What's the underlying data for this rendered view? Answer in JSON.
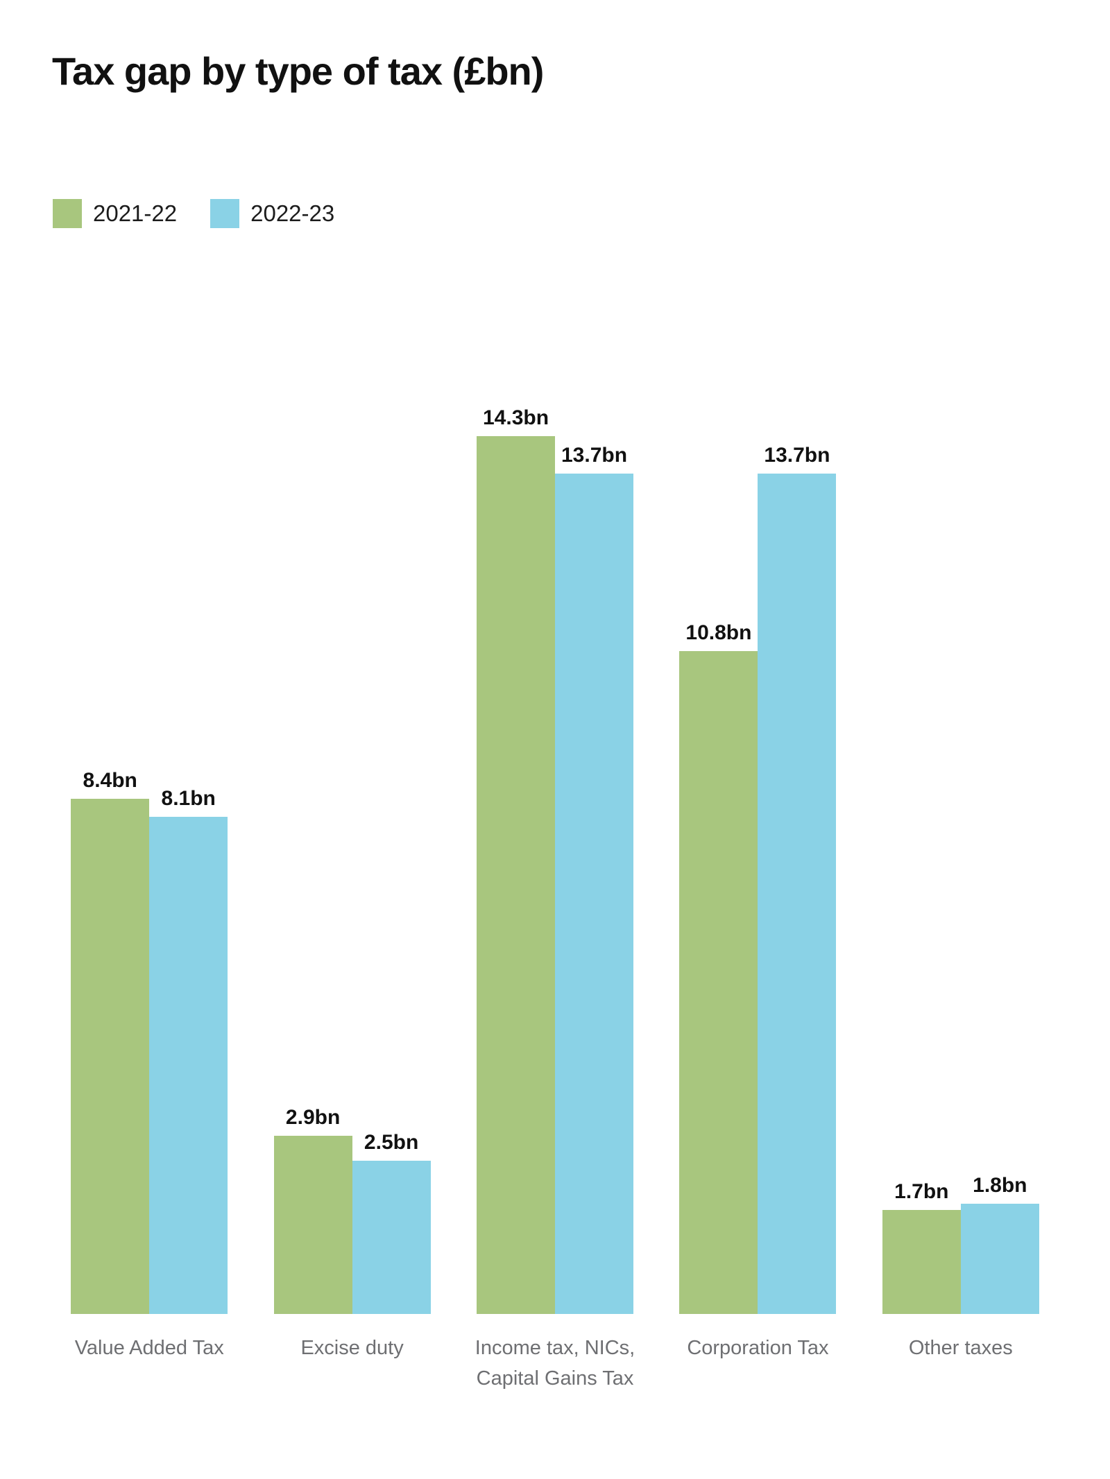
{
  "title": "Tax gap by type of tax (£bn)",
  "legend": [
    {
      "label": "2021-22",
      "color": "#a8c67e"
    },
    {
      "label": "2022-23",
      "color": "#8ad2e6"
    }
  ],
  "chart_data": {
    "type": "bar",
    "title": "Tax gap by type of tax (£bn)",
    "categories": [
      "Value Added Tax",
      "Excise duty",
      "Income tax, NICs,\nCapital Gains Tax",
      "Corporation Tax",
      "Other taxes"
    ],
    "series": [
      {
        "name": "2021-22",
        "color": "#a8c67e",
        "values": [
          8.4,
          2.9,
          14.3,
          10.8,
          1.7
        ],
        "data_labels": [
          "8.4bn",
          "2.9bn",
          "14.3bn",
          "10.8bn",
          "1.7bn"
        ]
      },
      {
        "name": "2022-23",
        "color": "#8ad2e6",
        "values": [
          8.1,
          2.5,
          13.7,
          13.7,
          1.8
        ],
        "data_labels": [
          "8.1bn",
          "2.5bn",
          "13.7bn",
          "13.7bn",
          "1.8bn"
        ]
      }
    ],
    "unit": "bn",
    "ylim": [
      0,
      16.5
    ],
    "grid": false,
    "axes_visible": false,
    "data_labels_shown": true,
    "legend_position": "top-left"
  },
  "colors": {
    "series_2021_22": "#a8c67e",
    "series_2022_23": "#8ad2e6",
    "title_text": "#111111",
    "value_label_text": "#111111",
    "category_text": "#6e6f72",
    "background": "#ffffff"
  }
}
